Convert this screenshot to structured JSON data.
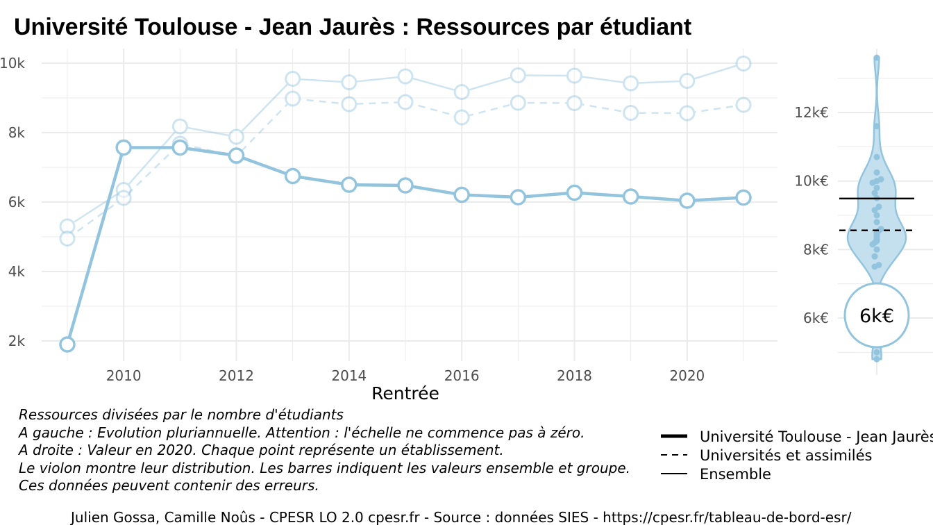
{
  "title": "Université Toulouse - Jean Jaurès  :  Ressources par étudiant",
  "chart_data": [
    {
      "type": "line",
      "xlabel": "Rentrée",
      "ylabel": "",
      "xlim": [
        2009,
        2021
      ],
      "ylim": [
        1700,
        10300
      ],
      "x_ticks": [
        2010,
        2012,
        2014,
        2016,
        2018,
        2020
      ],
      "y_ticks": [
        2000,
        4000,
        6000,
        8000,
        10000
      ],
      "y_tick_labels": [
        "2k",
        "4k",
        "6k",
        "8k",
        "10k"
      ],
      "grid": true,
      "x": [
        2009,
        2010,
        2011,
        2012,
        2013,
        2014,
        2015,
        2016,
        2017,
        2018,
        2019,
        2020,
        2021
      ],
      "series": [
        {
          "name": "Ensemble",
          "style": "solid-thin",
          "values": [
            5300,
            6350,
            8180,
            7880,
            9550,
            9450,
            9620,
            9170,
            9650,
            9640,
            9420,
            9490,
            9990
          ]
        },
        {
          "name": "Universités et assimilés",
          "style": "dashed",
          "values": [
            4950,
            6120,
            7680,
            7320,
            8980,
            8820,
            8880,
            8440,
            8860,
            8850,
            8570,
            8560,
            8800
          ]
        },
        {
          "name": "Université Toulouse - Jean Jaurès",
          "style": "solid-thick",
          "values": [
            1900,
            7570,
            7570,
            7340,
            6750,
            6500,
            6480,
            6210,
            6140,
            6270,
            6160,
            6040,
            6130
          ]
        }
      ]
    },
    {
      "type": "violin",
      "xlabel": "",
      "ylim": [
        4600,
        14100
      ],
      "y_ticks": [
        6000,
        8000,
        10000,
        12000
      ],
      "y_tick_labels": [
        "6k€",
        "8k€",
        "10k€",
        "12k€"
      ],
      "grid": true,
      "points": [
        13600,
        11600,
        10700,
        10250,
        10050,
        10000,
        9950,
        9800,
        9650,
        9650,
        9500,
        9250,
        9150,
        9000,
        8800,
        8600,
        8550,
        8500,
        8450,
        8400,
        8350,
        8300,
        8250,
        8200,
        8150,
        8000,
        7800,
        7800,
        7550,
        7500,
        5000,
        4800
      ],
      "hline_ensemble": 9490,
      "hline_group": 8560,
      "highlight_value": 6040,
      "highlight_label": "6k€"
    }
  ],
  "notes": [
    "Ressources divisées par le nombre d'étudiants",
    "A gauche : Evolution pluriannuelle. Attention : l'échelle ne commence pas à zéro.",
    "A droite : Valeur en 2020. Chaque point représente un établissement.",
    "Le violon montre leur distribution. Les barres indiquent les valeurs ensemble et groupe.",
    "Ces données peuvent contenir des erreurs."
  ],
  "legend": [
    {
      "label": "Université Toulouse - Jean Jaurès",
      "style": "thick"
    },
    {
      "label": "Universités et assimilés",
      "style": "dashed"
    },
    {
      "label": "Ensemble",
      "style": "thin"
    }
  ],
  "caption": "Julien Gossa, Camille Noûs - CPESR LO 2.0 cpesr.fr - Source : données SIES - https://cpesr.fr/tableau-de-bord-esr/",
  "colors": {
    "line": "#93c4de",
    "violin_fill": "#c4dfee",
    "grid": "#ebebeb",
    "tick": "#4d4d4d"
  }
}
